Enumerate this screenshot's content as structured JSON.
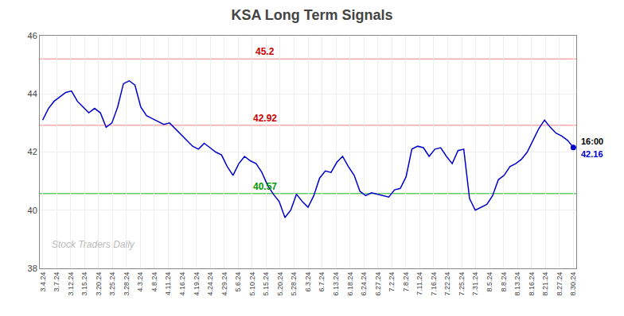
{
  "chart_data": {
    "type": "line",
    "title": "KSA Long Term Signals",
    "x": [
      0,
      1,
      2,
      3,
      4,
      5,
      6,
      7,
      8,
      9,
      10,
      11,
      12,
      13,
      14,
      15,
      16,
      17,
      18,
      19,
      20,
      21,
      22,
      23,
      24,
      25,
      26,
      27,
      28,
      29,
      30,
      31,
      32,
      33,
      34,
      35,
      36,
      37,
      38,
      39,
      40,
      41,
      42,
      43,
      44,
      45,
      46,
      47,
      48,
      49,
      50,
      51,
      52,
      53,
      54,
      55,
      56,
      57,
      58,
      59,
      60,
      61,
      62,
      63,
      64,
      65,
      66,
      67,
      68,
      69,
      70,
      71,
      72,
      73,
      74,
      75,
      76,
      77,
      78,
      79,
      80,
      81,
      82,
      83,
      84,
      85,
      86,
      87,
      88,
      89,
      90,
      91,
      92
    ],
    "series": [
      {
        "color": "#0000cc",
        "values": [
          43.1,
          43.5,
          43.75,
          43.9,
          44.05,
          44.1,
          43.75,
          43.55,
          43.35,
          43.5,
          43.35,
          42.85,
          43.0,
          43.55,
          44.35,
          44.45,
          44.3,
          43.55,
          43.25,
          43.15,
          43.05,
          42.95,
          43.0,
          42.8,
          42.6,
          42.4,
          42.2,
          42.1,
          42.3,
          42.15,
          42.0,
          41.9,
          41.5,
          41.2,
          41.6,
          41.85,
          41.7,
          41.6,
          41.3,
          40.85,
          40.55,
          40.3,
          39.75,
          40.0,
          40.55,
          40.3,
          40.1,
          40.5,
          41.1,
          41.35,
          41.3,
          41.65,
          41.85,
          41.5,
          41.2,
          40.65,
          40.5,
          40.6,
          40.55,
          40.5,
          40.45,
          40.7,
          40.75,
          41.15,
          42.1,
          42.2,
          42.15,
          41.85,
          42.1,
          42.15,
          41.85,
          41.6,
          42.05,
          42.1,
          40.4,
          40.0,
          40.1,
          40.2,
          40.5,
          41.05,
          41.2,
          41.5,
          41.6,
          41.75,
          42.0,
          42.4,
          42.8,
          43.1,
          42.85,
          42.65,
          42.55,
          42.4,
          42.16
        ]
      }
    ],
    "xlim": [
      -0.5,
      92.5
    ],
    "xticks": [
      {
        "value": 0,
        "label": "3.4.24"
      },
      {
        "value": 2.421053,
        "label": "3.7.24"
      },
      {
        "value": 4.842105,
        "label": "3.12.24"
      },
      {
        "value": 7.263158,
        "label": "3.15.24"
      },
      {
        "value": 9.684211,
        "label": "3.20.24"
      },
      {
        "value": 12.105263,
        "label": "3.25.24"
      },
      {
        "value": 14.526316,
        "label": "3.28.24"
      },
      {
        "value": 16.947368,
        "label": "4.3.24"
      },
      {
        "value": 19.368421,
        "label": "4.8.24"
      },
      {
        "value": 21.789474,
        "label": "4.11.24"
      },
      {
        "value": 24.210526,
        "label": "4.16.24"
      },
      {
        "value": 26.631579,
        "label": "4.19.24"
      },
      {
        "value": 29.052632,
        "label": "4.24.24"
      },
      {
        "value": 31.473684,
        "label": "4.29.24"
      },
      {
        "value": 33.894737,
        "label": "5.6.24"
      },
      {
        "value": 36.315789,
        "label": "5.10.24"
      },
      {
        "value": 38.736842,
        "label": "5.15.24"
      },
      {
        "value": 41.157895,
        "label": "5.20.24"
      },
      {
        "value": 43.578947,
        "label": "5.28.24"
      },
      {
        "value": 46,
        "label": "6.3.24"
      },
      {
        "value": 48.421053,
        "label": "6.7.24"
      },
      {
        "value": 50.842105,
        "label": "6.13.24"
      },
      {
        "value": 53.263158,
        "label": "6.18.24"
      },
      {
        "value": 55.684211,
        "label": "6.24.24"
      },
      {
        "value": 58.105263,
        "label": "6.27.24"
      },
      {
        "value": 60.526316,
        "label": "7.2.24"
      },
      {
        "value": 62.947368,
        "label": "7.8.24"
      },
      {
        "value": 65.368421,
        "label": "7.11.24"
      },
      {
        "value": 67.789474,
        "label": "7.16.24"
      },
      {
        "value": 70.210526,
        "label": "7.22.24"
      },
      {
        "value": 72.631579,
        "label": "7.25.24"
      },
      {
        "value": 75.052632,
        "label": "7.31.24"
      },
      {
        "value": 77.473684,
        "label": "8.5.24"
      },
      {
        "value": 79.894737,
        "label": "8.8.24"
      },
      {
        "value": 82.315789,
        "label": "8.13.24"
      },
      {
        "value": 84.736842,
        "label": "8.16.24"
      },
      {
        "value": 87.157895,
        "label": "8.21.24"
      },
      {
        "value": 89.578947,
        "label": "8.27.24"
      },
      {
        "value": 92,
        "label": "8.30.24"
      }
    ],
    "ylim": [
      38,
      46
    ],
    "yticks": [
      38,
      40,
      42,
      44,
      46
    ],
    "grid": true,
    "reference_lines": [
      {
        "value": 45.2,
        "color": "#ffaaaa",
        "label_color": "#cc0000"
      },
      {
        "value": 42.92,
        "color": "#ffaaaa",
        "label_color": "#cc0000"
      },
      {
        "value": 40.57,
        "color": "#66cc66",
        "label_color": "#009900"
      }
    ],
    "last_label_time": "16:00",
    "last_label_value": 42.16,
    "watermark": "Stock Traders Daily"
  }
}
